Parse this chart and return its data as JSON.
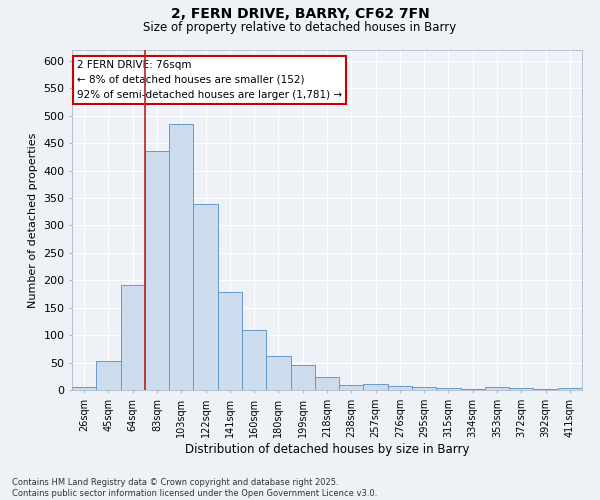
{
  "title": "2, FERN DRIVE, BARRY, CF62 7FN",
  "subtitle": "Size of property relative to detached houses in Barry",
  "xlabel": "Distribution of detached houses by size in Barry",
  "ylabel": "Number of detached properties",
  "bar_color": "#ccdcec",
  "bar_edge_color": "#6699cc",
  "categories": [
    "26sqm",
    "45sqm",
    "64sqm",
    "83sqm",
    "103sqm",
    "122sqm",
    "141sqm",
    "160sqm",
    "180sqm",
    "199sqm",
    "218sqm",
    "238sqm",
    "257sqm",
    "276sqm",
    "295sqm",
    "315sqm",
    "334sqm",
    "353sqm",
    "372sqm",
    "392sqm",
    "411sqm"
  ],
  "values": [
    5,
    52,
    192,
    435,
    485,
    340,
    178,
    110,
    62,
    46,
    23,
    10,
    11,
    7,
    6,
    3,
    2,
    5,
    3,
    2,
    3
  ],
  "ylim": [
    0,
    620
  ],
  "yticks": [
    0,
    50,
    100,
    150,
    200,
    250,
    300,
    350,
    400,
    450,
    500,
    550,
    600
  ],
  "redline_x": 2.5,
  "annotation_text": "2 FERN DRIVE: 76sqm\n← 8% of detached houses are smaller (152)\n92% of semi-detached houses are larger (1,781) →",
  "annotation_box_facecolor": "#ffffff",
  "annotation_border_color": "#cc0000",
  "bg_color": "#eef2f7",
  "grid_color": "#ffffff",
  "footer": "Contains HM Land Registry data © Crown copyright and database right 2025.\nContains public sector information licensed under the Open Government Licence v3.0."
}
